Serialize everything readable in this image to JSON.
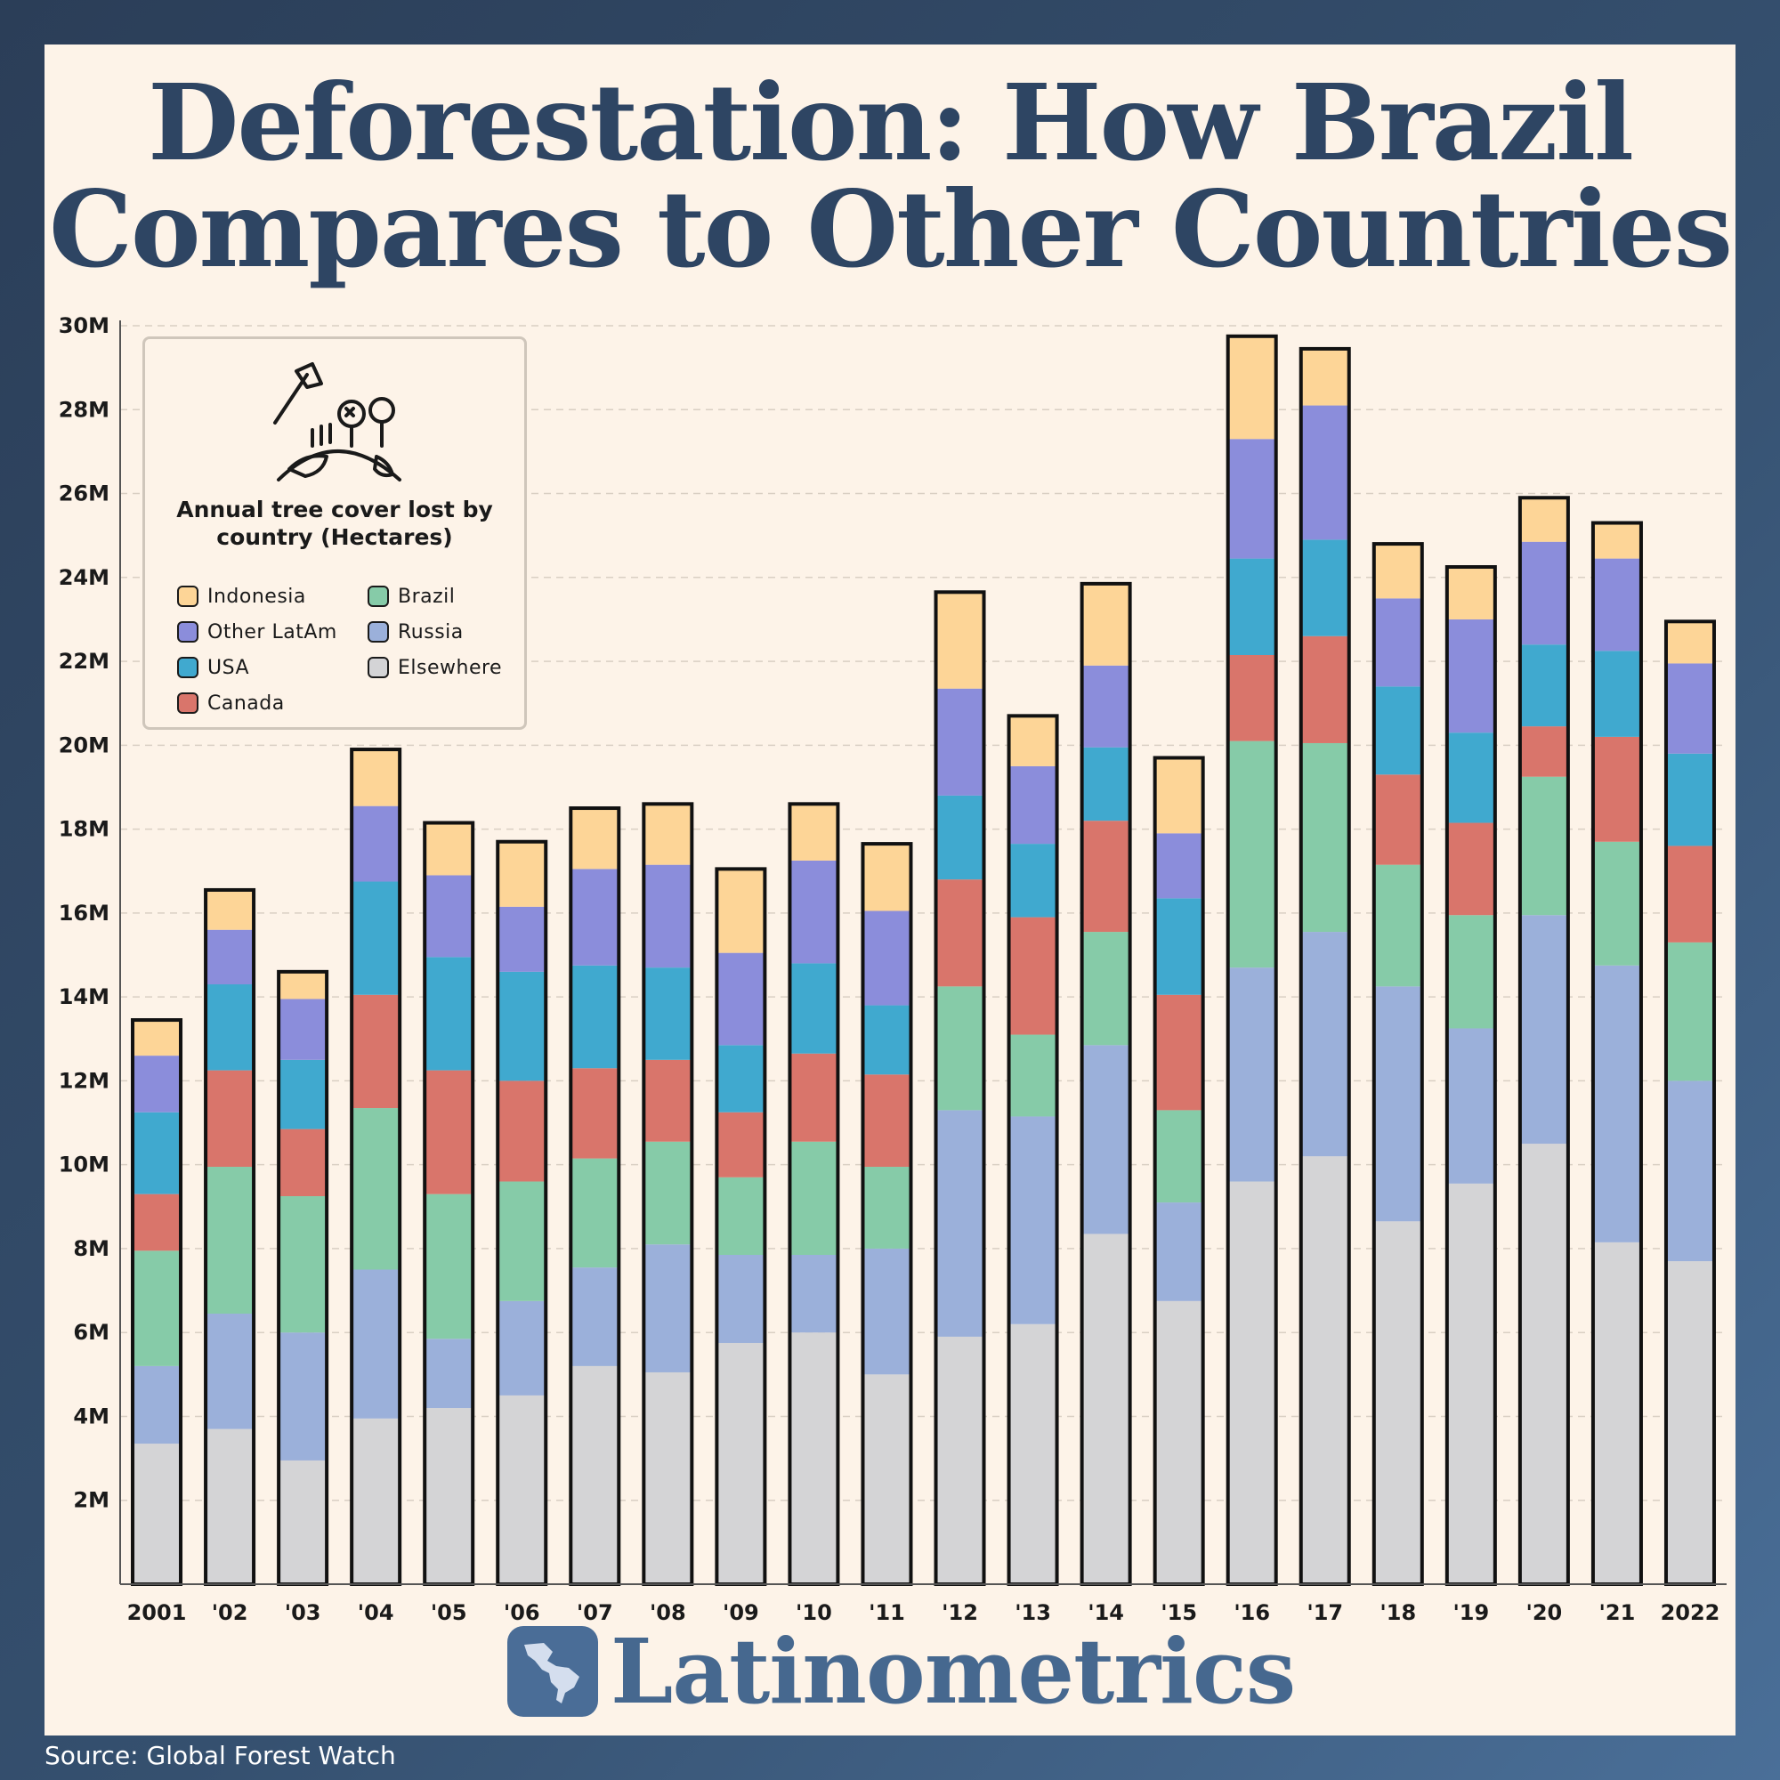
{
  "title_line1": "Deforestation: How Brazil",
  "title_line2": "Compares to Other Countries",
  "legend": {
    "title_line1": "Annual tree cover lost by",
    "title_line2": "country (Hectares)",
    "items": [
      {
        "label": "Indonesia",
        "color": "#fdd597"
      },
      {
        "label": "Brazil",
        "color": "#86cba8"
      },
      {
        "label": "Other LatAm",
        "color": "#8b8ddb"
      },
      {
        "label": "Russia",
        "color": "#9bb0da"
      },
      {
        "label": "USA",
        "color": "#40a9cf"
      },
      {
        "label": "Elsewhere",
        "color": "#d4d4d6"
      },
      {
        "label": "Canada",
        "color": "#d9756b"
      }
    ]
  },
  "brand": "Latinometrics",
  "source": "Source: Global Forest Watch",
  "chart_data": {
    "type": "bar",
    "stacked": true,
    "title": "Deforestation: How Brazil Compares to Other Countries",
    "ylabel": "",
    "xlabel": "",
    "ylim": [
      0,
      30000000
    ],
    "y_ticks": [
      {
        "value": 2000000,
        "label": "2M"
      },
      {
        "value": 4000000,
        "label": "4M"
      },
      {
        "value": 6000000,
        "label": "6M"
      },
      {
        "value": 8000000,
        "label": "8M"
      },
      {
        "value": 10000000,
        "label": "10M"
      },
      {
        "value": 12000000,
        "label": "12M"
      },
      {
        "value": 14000000,
        "label": "14M"
      },
      {
        "value": 16000000,
        "label": "16M"
      },
      {
        "value": 18000000,
        "label": "18M"
      },
      {
        "value": 20000000,
        "label": "20M"
      },
      {
        "value": 22000000,
        "label": "22M"
      },
      {
        "value": 24000000,
        "label": "24M"
      },
      {
        "value": 26000000,
        "label": "26M"
      },
      {
        "value": 28000000,
        "label": "28M"
      },
      {
        "value": 30000000,
        "label": "30M"
      }
    ],
    "grid": true,
    "legend_position": "top-left",
    "categories": [
      "2001",
      "'02",
      "'03",
      "'04",
      "'05",
      "'06",
      "'07",
      "'08",
      "'09",
      "'10",
      "'11",
      "'12",
      "'13",
      "'14",
      "'15",
      "'16",
      "'17",
      "'18",
      "'19",
      "'20",
      "'21",
      "2022"
    ],
    "series": [
      {
        "name": "Elsewhere",
        "color": "#d4d4d6",
        "values": [
          3350000,
          3700000,
          2950000,
          3950000,
          4200000,
          4500000,
          5200000,
          5050000,
          5750000,
          6000000,
          5000000,
          5900000,
          6200000,
          8350000,
          6750000,
          9600000,
          10200000,
          8650000,
          9550000,
          10500000,
          8150000,
          7700000
        ]
      },
      {
        "name": "Russia",
        "color": "#9bb0da",
        "values": [
          1850000,
          2750000,
          3050000,
          3550000,
          1650000,
          2250000,
          2350000,
          3050000,
          2100000,
          1850000,
          3000000,
          5400000,
          4950000,
          4500000,
          2350000,
          5100000,
          5350000,
          5600000,
          3700000,
          5450000,
          6600000,
          4300000
        ]
      },
      {
        "name": "Brazil",
        "color": "#86cba8",
        "values": [
          2750000,
          3500000,
          3250000,
          3850000,
          3450000,
          2850000,
          2600000,
          2450000,
          1850000,
          2700000,
          1950000,
          2950000,
          1950000,
          2700000,
          2200000,
          5400000,
          4500000,
          2900000,
          2700000,
          3300000,
          2950000,
          3300000
        ]
      },
      {
        "name": "Canada",
        "color": "#d9756b",
        "values": [
          1350000,
          2300000,
          1600000,
          2700000,
          2950000,
          2400000,
          2150000,
          1950000,
          1550000,
          2100000,
          2200000,
          2550000,
          2800000,
          2650000,
          2750000,
          2050000,
          2550000,
          2150000,
          2200000,
          1200000,
          2500000,
          2300000
        ]
      },
      {
        "name": "USA",
        "color": "#40a9cf",
        "values": [
          1950000,
          2050000,
          1650000,
          2700000,
          2700000,
          2600000,
          2450000,
          2200000,
          1600000,
          2150000,
          1650000,
          2000000,
          1750000,
          1750000,
          2300000,
          2300000,
          2300000,
          2100000,
          2150000,
          1950000,
          2050000,
          2200000
        ]
      },
      {
        "name": "Other LatAm",
        "color": "#8b8ddb",
        "values": [
          1350000,
          1300000,
          1450000,
          1800000,
          1950000,
          1550000,
          2300000,
          2450000,
          2200000,
          2450000,
          2250000,
          2550000,
          1850000,
          1950000,
          1550000,
          2850000,
          3200000,
          2100000,
          2700000,
          2450000,
          2200000,
          2150000
        ]
      },
      {
        "name": "Indonesia",
        "color": "#fdd597",
        "values": [
          850000,
          950000,
          650000,
          1350000,
          1250000,
          1550000,
          1450000,
          1450000,
          2000000,
          1350000,
          1600000,
          2300000,
          1200000,
          1950000,
          1800000,
          2450000,
          1350000,
          1300000,
          1250000,
          1050000,
          850000,
          1000000
        ]
      }
    ]
  }
}
